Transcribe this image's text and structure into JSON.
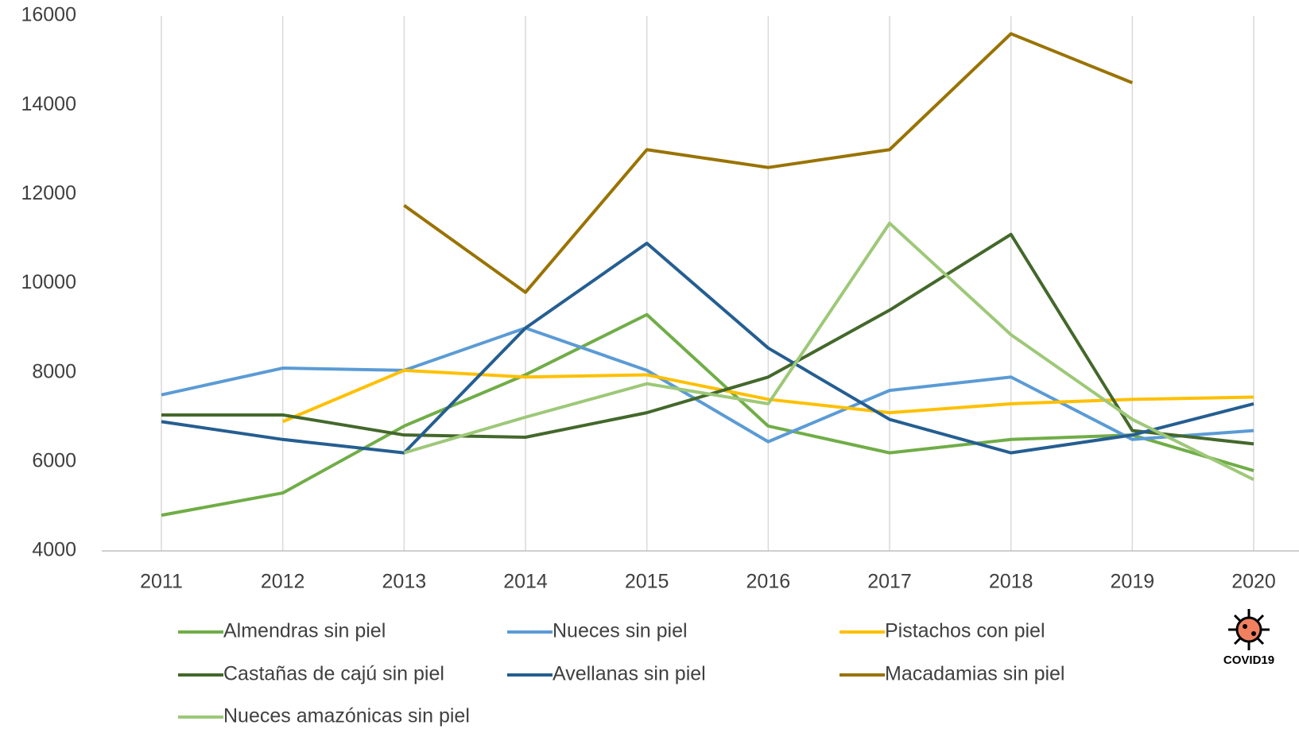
{
  "chart_data": {
    "type": "line",
    "categories": [
      "2011",
      "2012",
      "2013",
      "2014",
      "2015",
      "2016",
      "2017",
      "2018",
      "2019",
      "2020"
    ],
    "series": [
      {
        "name": "Almendras sin piel",
        "color": "#70ad47",
        "values": [
          4800,
          5300,
          6800,
          7950,
          9300,
          6800,
          6200,
          6500,
          6600,
          5800
        ]
      },
      {
        "name": "Nueces sin piel",
        "color": "#5b9bd5",
        "values": [
          7500,
          8100,
          8050,
          9000,
          8050,
          6450,
          7600,
          7900,
          6500,
          6700
        ]
      },
      {
        "name": "Pistachos con piel",
        "color": "#ffc000",
        "values": [
          null,
          6900,
          8050,
          7900,
          7950,
          7400,
          7100,
          7300,
          7400,
          7450
        ]
      },
      {
        "name": "Castañas de cajú sin piel",
        "color": "#43682b",
        "values": [
          7050,
          7050,
          6600,
          6550,
          7100,
          7900,
          9400,
          11100,
          6700,
          6400
        ]
      },
      {
        "name": "Avellanas sin piel",
        "color": "#255e91",
        "values": [
          6900,
          6500,
          6200,
          9000,
          10900,
          8550,
          6950,
          6200,
          6600,
          7300
        ]
      },
      {
        "name": "Macadamias sin piel",
        "color": "#997300",
        "values": [
          null,
          null,
          11750,
          9800,
          13000,
          12600,
          13000,
          15600,
          14500,
          null
        ]
      },
      {
        "name": "Nueces amazónicas sin piel",
        "color": "#9dc878",
        "values": [
          null,
          null,
          6200,
          7000,
          7750,
          7300,
          11350,
          8850,
          6950,
          5600
        ]
      }
    ],
    "ylim": [
      4000,
      16000
    ],
    "yticks": [
      4000,
      6000,
      8000,
      10000,
      12000,
      14000,
      16000
    ],
    "grid": true,
    "legend": "bottom",
    "annotation": "COVID19"
  }
}
